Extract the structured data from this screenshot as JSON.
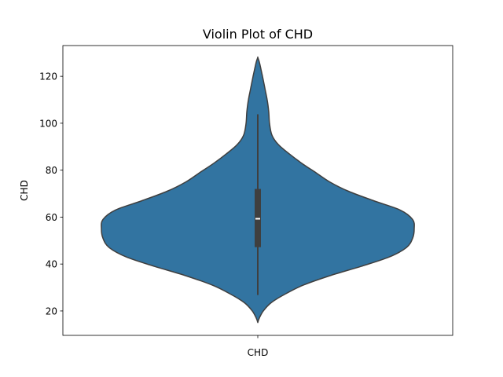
{
  "chart_data": {
    "type": "violin",
    "title": "Violin Plot of CHD",
    "xlabel": "",
    "ylabel": "CHD",
    "categories": [
      "CHD"
    ],
    "ylim": [
      9.6,
      133.1
    ],
    "yticks": [
      20,
      40,
      60,
      80,
      100,
      120
    ],
    "grid": false,
    "colors": {
      "violin_fill": "#3274a1",
      "violin_edge": "#3f3f3f",
      "box": "#3f3f3f",
      "median": "#ffffff"
    },
    "distribution": {
      "min": 26.8,
      "q1": 47.2,
      "median": 59.3,
      "q3": 72.0,
      "max": 103.8,
      "kde_min": 15.1,
      "kde_max": 128.0
    },
    "density_profile": [
      {
        "y": 15.1,
        "w": 0.0
      },
      {
        "y": 17.0,
        "w": 0.01
      },
      {
        "y": 20.0,
        "w": 0.035
      },
      {
        "y": 23.5,
        "w": 0.085
      },
      {
        "y": 27.0,
        "w": 0.17
      },
      {
        "y": 31.0,
        "w": 0.29
      },
      {
        "y": 35.0,
        "w": 0.46
      },
      {
        "y": 39.0,
        "w": 0.66
      },
      {
        "y": 43.0,
        "w": 0.84
      },
      {
        "y": 47.0,
        "w": 0.95
      },
      {
        "y": 51.0,
        "w": 0.99
      },
      {
        "y": 55.0,
        "w": 1.0
      },
      {
        "y": 59.0,
        "w": 0.99
      },
      {
        "y": 63.0,
        "w": 0.91
      },
      {
        "y": 67.0,
        "w": 0.74
      },
      {
        "y": 71.0,
        "w": 0.58
      },
      {
        "y": 75.0,
        "w": 0.46
      },
      {
        "y": 79.0,
        "w": 0.37
      },
      {
        "y": 83.0,
        "w": 0.28
      },
      {
        "y": 87.0,
        "w": 0.2
      },
      {
        "y": 91.0,
        "w": 0.13
      },
      {
        "y": 95.0,
        "w": 0.09
      },
      {
        "y": 100.0,
        "w": 0.075
      },
      {
        "y": 105.0,
        "w": 0.07
      },
      {
        "y": 110.0,
        "w": 0.06
      },
      {
        "y": 115.0,
        "w": 0.045
      },
      {
        "y": 120.0,
        "w": 0.03
      },
      {
        "y": 124.0,
        "w": 0.017
      },
      {
        "y": 126.5,
        "w": 0.008
      },
      {
        "y": 128.0,
        "w": 0.0
      }
    ]
  }
}
